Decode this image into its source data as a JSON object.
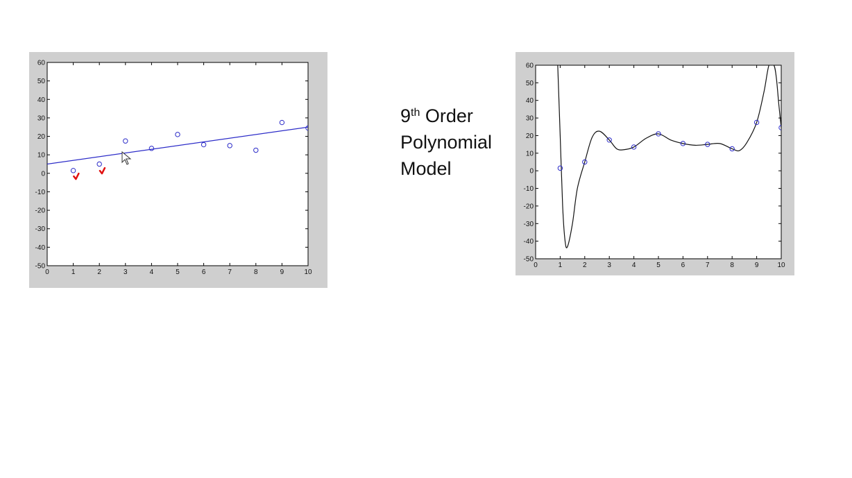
{
  "caption": {
    "order_number": "9",
    "order_suffix": "th",
    "line1_rest": " Order",
    "line2": "Polynomial",
    "line3": "Model"
  },
  "colors": {
    "figure_bg": "#cfcfcf",
    "axes_bg": "#ffffff",
    "linear_fit": "#2b2bc8",
    "markers": "#2b2bc8",
    "poly_curve": "#111111",
    "check_marks": "#e01010"
  },
  "chart_data": [
    {
      "type": "scatter",
      "title": "",
      "xlabel": "",
      "ylabel": "",
      "xlim": [
        0,
        10
      ],
      "ylim": [
        -50,
        60
      ],
      "xticks": [
        "0",
        "1",
        "2",
        "3",
        "4",
        "5",
        "6",
        "7",
        "8",
        "9",
        "10"
      ],
      "yticks": [
        "-50",
        "-40",
        "-30",
        "-20",
        "-10",
        "0",
        "10",
        "20",
        "30",
        "40",
        "50",
        "60"
      ],
      "grid": false,
      "points": {
        "x": [
          1,
          2,
          3,
          4,
          5,
          6,
          7,
          8,
          9,
          10
        ],
        "y": [
          1.5,
          5,
          17.5,
          13.5,
          21,
          15.5,
          15,
          12.5,
          27.5,
          24.5
        ]
      },
      "fit_line": {
        "x": [
          0,
          10
        ],
        "y": [
          5,
          25
        ]
      },
      "annotations": [
        {
          "type": "check-mark",
          "x": 1.1,
          "y": -2
        },
        {
          "type": "check-mark",
          "x": 2.1,
          "y": 1
        }
      ]
    },
    {
      "type": "scatter",
      "title": "",
      "xlabel": "",
      "ylabel": "",
      "xlim": [
        0,
        10
      ],
      "ylim": [
        -50,
        60
      ],
      "xticks": [
        "0",
        "1",
        "2",
        "3",
        "4",
        "5",
        "6",
        "7",
        "8",
        "9",
        "10"
      ],
      "yticks": [
        "-50",
        "-40",
        "-30",
        "-20",
        "-10",
        "0",
        "10",
        "20",
        "30",
        "40",
        "50",
        "60"
      ],
      "grid": false,
      "points": {
        "x": [
          1,
          2,
          3,
          4,
          5,
          6,
          7,
          8,
          9,
          10
        ],
        "y": [
          1.5,
          5,
          17.5,
          13.5,
          21,
          15.5,
          15,
          12.5,
          27.5,
          24.5
        ]
      },
      "curve": {
        "x": [
          0.9,
          1.0,
          1.1,
          1.2,
          1.3,
          1.5,
          1.7,
          2.0,
          2.3,
          2.6,
          3.0,
          3.3,
          3.6,
          4.0,
          4.5,
          5.0,
          5.5,
          6.0,
          6.5,
          7.0,
          7.5,
          8.0,
          8.3,
          8.6,
          9.0,
          9.3,
          9.5,
          9.7,
          9.8,
          9.9,
          10.0
        ],
        "y": [
          60,
          20,
          -20,
          -40,
          -43,
          -30,
          -10,
          5,
          19,
          22.5,
          17.5,
          12.5,
          12,
          13.5,
          18.5,
          21,
          17.5,
          15.5,
          14.5,
          15,
          15.5,
          12.5,
          11.5,
          16,
          27.5,
          45,
          60,
          60,
          53,
          38,
          24.5
        ]
      }
    }
  ]
}
